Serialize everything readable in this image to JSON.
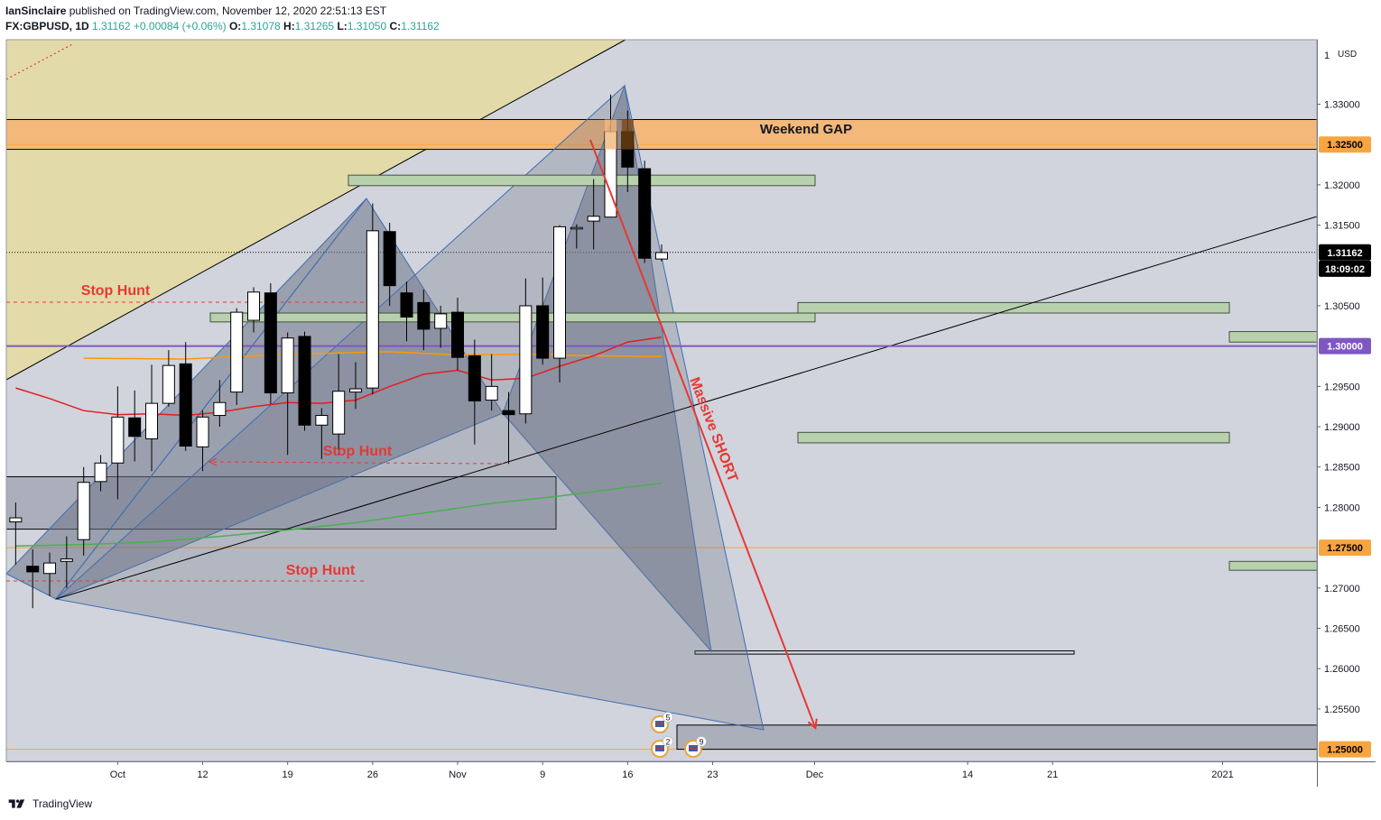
{
  "header": {
    "publisher": "IanSinclaire",
    "published_text": "published on TradingView.com, November 12, 2020 22:51:13 EST",
    "symbol": "FX:GBPUSD",
    "interval": "1D",
    "last": "1.31162",
    "change": "+0.00084 (+0.06%)",
    "o_label": "O:",
    "o_value": "1.31078",
    "h_label": "H:",
    "h_value": "1.31265",
    "l_label": "L:",
    "l_value": "1.31050",
    "c_label": "C:",
    "c_value": "1.31162"
  },
  "footer": {
    "brand": "TradingView"
  },
  "colors": {
    "background": "#d1d4dc",
    "bull": "#ffffff",
    "bear": "#000000",
    "annotation_red": "#e53935",
    "price_tag_orange": "#f7a541",
    "level_purple": "#7e57c2",
    "ma_red": "#e51c23",
    "ma_green": "#4caf50",
    "ma_orange": "#ff9800",
    "zone_green": "#b7d1ae",
    "gap_orange": "#f3b87a",
    "pattern_fill": "#7b8393"
  },
  "chart_data": {
    "type": "candlestick",
    "currency": "USD",
    "y_ticks": [
      "1.25500",
      "1.26000",
      "1.26500",
      "1.27000",
      "1.28000",
      "1.28500",
      "1.29000",
      "1.29500",
      "1.30500",
      "1.31500",
      "1.32000",
      "1.33000"
    ],
    "x_ticks": [
      {
        "label": "Oct",
        "x": 6
      },
      {
        "label": "12",
        "x": 11
      },
      {
        "label": "19",
        "x": 16
      },
      {
        "label": "26",
        "x": 21
      },
      {
        "label": "Nov",
        "x": 26
      },
      {
        "label": "9",
        "x": 31
      },
      {
        "label": "16",
        "x": 36
      },
      {
        "label": "23",
        "x": 41
      },
      {
        "label": "Dec",
        "x": 47
      },
      {
        "label": "14",
        "x": 56
      },
      {
        "label": "21",
        "x": 61
      },
      {
        "label": "2021",
        "x": 71
      }
    ],
    "ylim": [
      1.2485,
      1.338
    ],
    "xlim": [
      -0.55,
      76.55
    ],
    "candles": [
      {
        "x": 0,
        "o": 1.2782,
        "h": 1.2806,
        "l": 1.2729,
        "c": 1.2787
      },
      {
        "x": 1,
        "o": 1.2727,
        "h": 1.2748,
        "l": 1.2675,
        "c": 1.272
      },
      {
        "x": 2,
        "o": 1.2718,
        "h": 1.2744,
        "l": 1.269,
        "c": 1.2731
      },
      {
        "x": 3,
        "o": 1.2733,
        "h": 1.2764,
        "l": 1.27,
        "c": 1.2736
      },
      {
        "x": 4,
        "o": 1.276,
        "h": 1.285,
        "l": 1.274,
        "c": 1.2831
      },
      {
        "x": 5,
        "o": 1.2832,
        "h": 1.2865,
        "l": 1.282,
        "c": 1.2855
      },
      {
        "x": 6,
        "o": 1.2855,
        "h": 1.295,
        "l": 1.281,
        "c": 1.2912
      },
      {
        "x": 7,
        "o": 1.2911,
        "h": 1.2945,
        "l": 1.2857,
        "c": 1.2888
      },
      {
        "x": 8,
        "o": 1.2885,
        "h": 1.2977,
        "l": 1.2845,
        "c": 1.2929
      },
      {
        "x": 9,
        "o": 1.2929,
        "h": 1.2995,
        "l": 1.2925,
        "c": 1.2976
      },
      {
        "x": 10,
        "o": 1.2978,
        "h": 1.3005,
        "l": 1.287,
        "c": 1.2876
      },
      {
        "x": 11,
        "o": 1.2875,
        "h": 1.292,
        "l": 1.2845,
        "c": 1.2912
      },
      {
        "x": 12,
        "o": 1.2914,
        "h": 1.2958,
        "l": 1.29,
        "c": 1.293
      },
      {
        "x": 13,
        "o": 1.2943,
        "h": 1.3047,
        "l": 1.2927,
        "c": 1.3042
      },
      {
        "x": 14,
        "o": 1.3032,
        "h": 1.3073,
        "l": 1.3017,
        "c": 1.3067
      },
      {
        "x": 15,
        "o": 1.3066,
        "h": 1.3078,
        "l": 1.2928,
        "c": 1.2942
      },
      {
        "x": 16,
        "o": 1.2942,
        "h": 1.3017,
        "l": 1.2865,
        "c": 1.301
      },
      {
        "x": 17,
        "o": 1.3012,
        "h": 1.3018,
        "l": 1.2895,
        "c": 1.2902
      },
      {
        "x": 18,
        "o": 1.2902,
        "h": 1.2923,
        "l": 1.286,
        "c": 1.2914
      },
      {
        "x": 19,
        "o": 1.2891,
        "h": 1.299,
        "l": 1.2865,
        "c": 1.2944
      },
      {
        "x": 20,
        "o": 1.2943,
        "h": 1.298,
        "l": 1.2922,
        "c": 1.2947
      },
      {
        "x": 21,
        "o": 1.2948,
        "h": 1.3177,
        "l": 1.294,
        "c": 1.3143
      },
      {
        "x": 22,
        "o": 1.3142,
        "h": 1.3153,
        "l": 1.305,
        "c": 1.3075
      },
      {
        "x": 23,
        "o": 1.3066,
        "h": 1.308,
        "l": 1.3006,
        "c": 1.3036
      },
      {
        "x": 24,
        "o": 1.3054,
        "h": 1.307,
        "l": 1.2995,
        "c": 1.3021
      },
      {
        "x": 25,
        "o": 1.3022,
        "h": 1.305,
        "l": 1.2998,
        "c": 1.304
      },
      {
        "x": 26,
        "o": 1.3042,
        "h": 1.306,
        "l": 1.297,
        "c": 1.2986
      },
      {
        "x": 27,
        "o": 1.2988,
        "h": 1.3008,
        "l": 1.2878,
        "c": 1.2932
      },
      {
        "x": 28,
        "o": 1.2933,
        "h": 1.299,
        "l": 1.292,
        "c": 1.295
      },
      {
        "x": 29,
        "o": 1.292,
        "h": 1.2943,
        "l": 1.2854,
        "c": 1.2915
      },
      {
        "x": 30,
        "o": 1.2916,
        "h": 1.3084,
        "l": 1.2904,
        "c": 1.305
      },
      {
        "x": 31,
        "o": 1.305,
        "h": 1.3085,
        "l": 1.2977,
        "c": 1.2985
      },
      {
        "x": 32,
        "o": 1.2985,
        "h": 1.315,
        "l": 1.2955,
        "c": 1.3148
      },
      {
        "x": 33,
        "o": 1.3146,
        "h": 1.3151,
        "l": 1.3121,
        "c": 1.3147
      },
      {
        "x": 34,
        "o": 1.3155,
        "h": 1.3207,
        "l": 1.312,
        "c": 1.3161
      },
      {
        "x": 35,
        "o": 1.316,
        "h": 1.3312,
        "l": 1.316,
        "c": 1.3266
      },
      {
        "x": 36,
        "o": 1.3266,
        "h": 1.3292,
        "l": 1.3191,
        "c": 1.3222
      },
      {
        "x": 37,
        "o": 1.322,
        "h": 1.323,
        "l": 1.3103,
        "c": 1.3109
      },
      {
        "x": 38,
        "o": 1.3108,
        "h": 1.3126,
        "l": 1.3105,
        "c": 1.3116
      }
    ],
    "price_labels": [
      {
        "text": "1.32500",
        "value": 1.325,
        "bg": "#f7a541",
        "fg": "#000000"
      },
      {
        "text": "1.31162",
        "value": 1.31162,
        "bg": "#000000",
        "fg": "#ffffff"
      },
      {
        "text": "18:09:02",
        "value": 1.3096,
        "bg": "#000000",
        "fg": "#ffffff"
      },
      {
        "text": "1.30000",
        "value": 1.3,
        "bg": "#7e57c2",
        "fg": "#ffffff"
      },
      {
        "text": "1.27500",
        "value": 1.275,
        "bg": "#f7a541",
        "fg": "#000000"
      },
      {
        "text": "1.25000",
        "value": 1.25,
        "bg": "#f7a541",
        "fg": "#000000"
      }
    ],
    "annotations": {
      "weekend_gap": "Weekend GAP",
      "stop_hunt_1": "Stop Hunt",
      "stop_hunt_2": "Stop Hunt",
      "stop_hunt_3": "Stop Hunt",
      "massive_short": "Massive SHORT"
    },
    "event_badges": [
      "5",
      "2",
      "9"
    ]
  }
}
